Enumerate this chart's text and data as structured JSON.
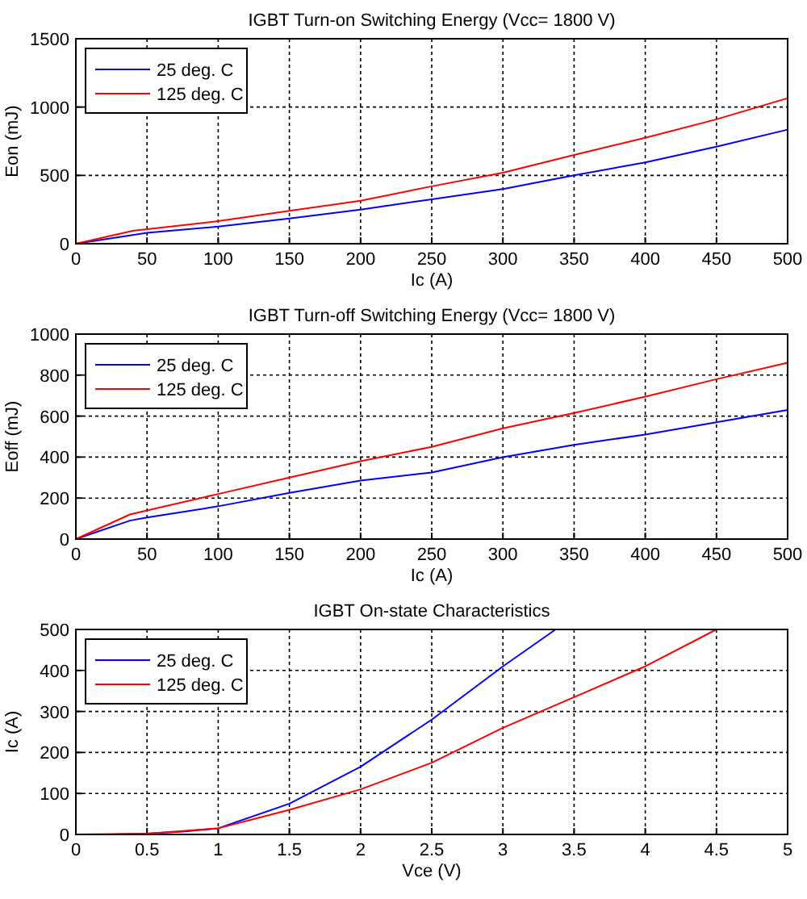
{
  "chart_data": [
    {
      "type": "line",
      "title": "IGBT Turn-on Switching Energy (Vcc= 1800 V)",
      "xlabel": "Ic (A)",
      "ylabel": "Eon (mJ)",
      "xlim": [
        0,
        500
      ],
      "ylim": [
        0,
        1500
      ],
      "xticks": [
        0,
        50,
        100,
        150,
        200,
        250,
        300,
        350,
        400,
        450,
        500
      ],
      "yticks": [
        0,
        500,
        1000,
        1500
      ],
      "grid": true,
      "legend": "top left",
      "series": [
        {
          "name": "25 deg. C",
          "color": "#0000ff",
          "x": [
            0,
            50,
            100,
            150,
            200,
            250,
            300,
            350,
            400,
            450,
            500
          ],
          "values": [
            0,
            80,
            125,
            185,
            250,
            325,
            400,
            500,
            595,
            710,
            835
          ]
        },
        {
          "name": "125 deg. C",
          "color": "#ff0000",
          "x": [
            0,
            40,
            100,
            150,
            200,
            250,
            300,
            350,
            400,
            450,
            500
          ],
          "values": [
            0,
            95,
            165,
            240,
            315,
            420,
            520,
            650,
            775,
            910,
            1065
          ]
        }
      ]
    },
    {
      "type": "line",
      "title": "IGBT Turn-off Switching Energy (Vcc= 1800 V)",
      "xlabel": "Ic (A)",
      "ylabel": "Eoff (mJ)",
      "xlim": [
        0,
        500
      ],
      "ylim": [
        0,
        1000
      ],
      "xticks": [
        0,
        50,
        100,
        150,
        200,
        250,
        300,
        350,
        400,
        450,
        500
      ],
      "yticks": [
        0,
        200,
        400,
        600,
        800,
        1000
      ],
      "grid": true,
      "legend": "top left",
      "series": [
        {
          "name": "25 deg. C",
          "color": "#0000ff",
          "x": [
            0,
            38,
            50,
            100,
            150,
            200,
            250,
            300,
            350,
            400,
            450,
            500
          ],
          "values": [
            0,
            90,
            105,
            160,
            225,
            285,
            325,
            400,
            460,
            510,
            570,
            630
          ]
        },
        {
          "name": "125 deg. C",
          "color": "#ff0000",
          "x": [
            0,
            38,
            50,
            100,
            150,
            200,
            250,
            300,
            350,
            400,
            450,
            500
          ],
          "values": [
            0,
            120,
            140,
            220,
            300,
            380,
            450,
            540,
            615,
            695,
            780,
            860
          ]
        }
      ]
    },
    {
      "type": "line",
      "title": "IGBT On-state Characteristics",
      "xlabel": "Vce (V)",
      "ylabel": "Ic (A)",
      "xlim": [
        0,
        5
      ],
      "ylim": [
        0,
        500
      ],
      "xticks": [
        0,
        0.5,
        1,
        1.5,
        2,
        2.5,
        3,
        3.5,
        4,
        4.5,
        5
      ],
      "yticks": [
        0,
        100,
        200,
        300,
        400,
        500
      ],
      "grid": true,
      "legend": "top left",
      "series": [
        {
          "name": "25 deg. C",
          "color": "#0000ff",
          "x": [
            0.25,
            0.5,
            0.75,
            1,
            1.5,
            2,
            2.5,
            3,
            3.37
          ],
          "values": [
            0,
            2,
            7,
            15,
            75,
            165,
            280,
            410,
            500
          ]
        },
        {
          "name": "125 deg. C",
          "color": "#ff0000",
          "x": [
            0,
            0.5,
            1,
            1.5,
            2,
            2.5,
            3,
            3.5,
            4,
            4.5
          ],
          "values": [
            0,
            2,
            15,
            60,
            110,
            175,
            260,
            335,
            410,
            500
          ]
        }
      ]
    }
  ]
}
